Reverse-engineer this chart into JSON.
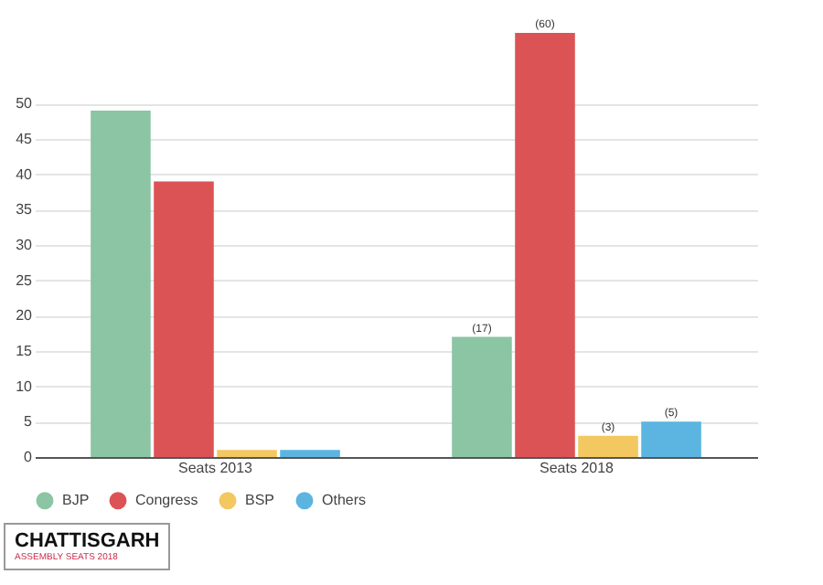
{
  "chart_data": {
    "type": "bar",
    "categories": [
      "Seats 2013",
      "Seats 2018"
    ],
    "series": [
      {
        "name": "BJP",
        "color": "#8cc5a3",
        "values": [
          49,
          17
        ],
        "value_labels": [
          null,
          "(17)"
        ]
      },
      {
        "name": "Congress",
        "color": "#dc5356",
        "values": [
          39,
          60
        ],
        "value_labels": [
          null,
          "(60)"
        ]
      },
      {
        "name": "BSP",
        "color": "#f3c860",
        "values": [
          1,
          3
        ],
        "value_labels": [
          null,
          "(3)"
        ]
      },
      {
        "name": "Others",
        "color": "#5bb5e0",
        "values": [
          1,
          5
        ],
        "value_labels": [
          null,
          "(5)"
        ]
      }
    ],
    "ylim": [
      0,
      60
    ],
    "yticks": [
      0,
      5,
      10,
      15,
      20,
      25,
      30,
      35,
      40,
      45,
      50
    ],
    "grid": "y",
    "legend": "bottom",
    "marker": "circle",
    "annotations": [
      "CHATTISGARH",
      "ASSEMBLY SEATS 2018"
    ]
  }
}
